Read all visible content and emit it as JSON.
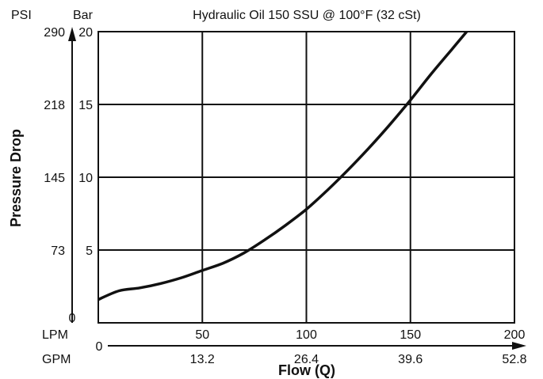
{
  "header": {
    "psi_label": "PSI",
    "bar_label": "Bar",
    "subtitle": "Hydraulic Oil 150 SSU @ 100°F (32 cSt)"
  },
  "labels": {
    "lpm": "LPM",
    "gpm": "GPM",
    "gpm_zero": "0",
    "psi_zero": "0"
  },
  "chart_data": {
    "type": "line",
    "title": "",
    "subtitle": "Hydraulic Oil 150 SSU @ 100°F (32 cSt)",
    "xlabel": "Flow (Q)",
    "ylabel": "Pressure Drop",
    "x_unit": "LPM",
    "y_unit": "Bar",
    "xlim": [
      0,
      200
    ],
    "ylim": [
      0,
      20
    ],
    "grid": true,
    "x_ticks": [
      50,
      100,
      150,
      200
    ],
    "x_tick_labels": [
      "50",
      "100",
      "150",
      "200"
    ],
    "x_gpm_ticks": [
      50,
      100,
      150,
      200
    ],
    "x_gpm_tick_labels": [
      "13.2",
      "26.4",
      "39.6",
      "52.8"
    ],
    "y_ticks": [
      5,
      10,
      15,
      20
    ],
    "y_tick_labels": [
      "5",
      "10",
      "15",
      "20"
    ],
    "y_psi_ticks": [
      5,
      10,
      15,
      20
    ],
    "y_psi_tick_labels": [
      "73",
      "145",
      "218",
      "290"
    ],
    "series": [
      {
        "x": [
          0,
          10,
          20,
          30,
          40,
          50,
          60,
          70,
          80,
          90,
          100,
          110,
          120,
          130,
          140,
          150,
          160,
          170,
          180,
          185
        ],
        "y": [
          1.6,
          2.2,
          2.4,
          2.7,
          3.1,
          3.6,
          4.1,
          4.8,
          5.7,
          6.7,
          7.8,
          9.1,
          10.5,
          12.0,
          13.6,
          15.3,
          17.1,
          18.8,
          20.5,
          21.3
        ]
      }
    ]
  }
}
